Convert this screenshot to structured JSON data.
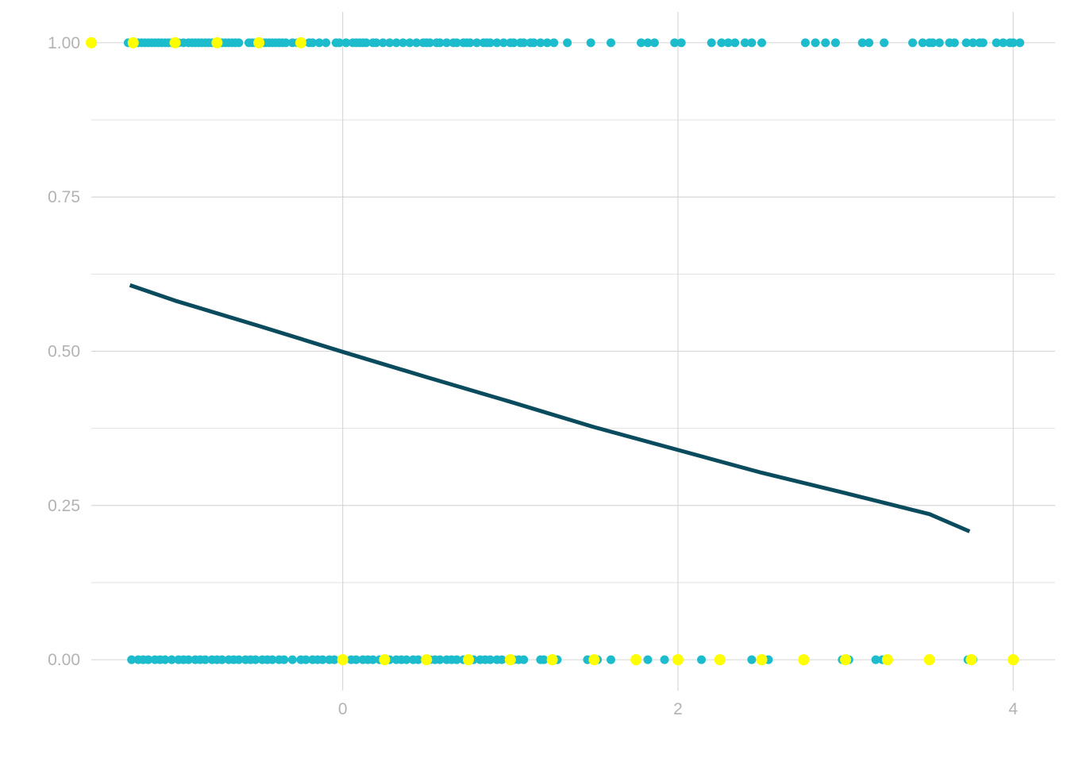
{
  "chart_data": {
    "type": "scatter",
    "title": "",
    "xlabel": "",
    "ylabel": "",
    "xlim": [
      -1.5,
      4.25
    ],
    "ylim": [
      -0.05,
      1.05
    ],
    "x_ticks": [
      0,
      2,
      4
    ],
    "x_tick_labels": [
      "0",
      "2",
      "4"
    ],
    "y_ticks": [
      0,
      0.25,
      0.5,
      0.75,
      1.0
    ],
    "y_tick_labels": [
      "0.00",
      "0.25",
      "0.50",
      "0.75",
      "1.00"
    ],
    "grid": true,
    "legend": "none",
    "colors": {
      "observed": "#1cbccc",
      "highlighted": "#ffff00",
      "fit_line": "#0b4b5e",
      "grid": "#d4d4d4",
      "tick_text": "#b3b3b3"
    },
    "series": [
      {
        "kind": "points",
        "y": 1,
        "color": "observed",
        "x": [
          -1.28,
          -1.26,
          -1.24,
          -1.22,
          -1.2,
          -1.18,
          -1.16,
          -1.14,
          -1.12,
          -1.1,
          -1.08,
          -1.06,
          -1.04,
          -1.02,
          -1.0,
          -0.98,
          -0.95,
          -0.92,
          -0.9,
          -0.88,
          -0.86,
          -0.84,
          -0.82,
          -0.8,
          -0.78,
          -0.76,
          -0.74,
          -0.72,
          -0.7,
          -0.68,
          -0.66,
          -0.64,
          -0.62,
          -0.56,
          -0.54,
          -0.52,
          -0.5,
          -0.48,
          -0.46,
          -0.44,
          -0.42,
          -0.4,
          -0.38,
          -0.36,
          -0.34,
          -0.3,
          -0.27,
          -0.24,
          -0.2,
          -0.18,
          -0.14,
          -0.1,
          -0.04,
          -0.02,
          0.02,
          0.06,
          0.08,
          0.1,
          0.12,
          0.14,
          0.18,
          0.2,
          0.24,
          0.28,
          0.32,
          0.36,
          0.4,
          0.44,
          0.48,
          0.5,
          0.52,
          0.56,
          0.58,
          0.62,
          0.66,
          0.68,
          0.72,
          0.74,
          0.76,
          0.8,
          0.84,
          0.86,
          0.88,
          0.92,
          0.96,
          1.0,
          1.02,
          1.06,
          1.08,
          1.12,
          1.14,
          1.18,
          1.22,
          1.26,
          1.34,
          1.48,
          1.6,
          1.78,
          1.82,
          1.86,
          1.98,
          2.02,
          2.2,
          2.26,
          2.3,
          2.34,
          2.4,
          2.44,
          2.5,
          2.76,
          2.82,
          2.88,
          2.94,
          3.1,
          3.14,
          3.23,
          3.4,
          3.46,
          3.5,
          3.52,
          3.56,
          3.62,
          3.65,
          3.72,
          3.76,
          3.8,
          3.82,
          3.9,
          3.94,
          3.98,
          4.0,
          4.04
        ]
      },
      {
        "kind": "points",
        "y": 1,
        "color": "highlighted",
        "x": [
          -1.5,
          -1.25,
          -1.0,
          -0.75,
          -0.5,
          -0.25
        ]
      },
      {
        "kind": "points",
        "y": 0,
        "color": "observed",
        "x": [
          -1.26,
          -1.22,
          -1.19,
          -1.16,
          -1.12,
          -1.09,
          -1.06,
          -1.02,
          -0.98,
          -0.95,
          -0.92,
          -0.88,
          -0.85,
          -0.82,
          -0.78,
          -0.75,
          -0.72,
          -0.68,
          -0.65,
          -0.62,
          -0.58,
          -0.55,
          -0.52,
          -0.48,
          -0.45,
          -0.42,
          -0.38,
          -0.35,
          -0.3,
          -0.25,
          -0.22,
          -0.18,
          -0.15,
          -0.12,
          -0.08,
          -0.05,
          0.05,
          0.08,
          0.12,
          0.15,
          0.18,
          0.22,
          0.28,
          0.32,
          0.35,
          0.38,
          0.42,
          0.45,
          0.52,
          0.55,
          0.58,
          0.62,
          0.65,
          0.68,
          0.72,
          0.78,
          0.82,
          0.85,
          0.88,
          0.92,
          0.95,
          1.02,
          1.05,
          1.08,
          1.18,
          1.2,
          1.28,
          1.46,
          1.52,
          1.6,
          1.82,
          1.92,
          2.14,
          2.44,
          2.54,
          2.98,
          3.02,
          3.18,
          3.22,
          3.73,
          3.76
        ]
      },
      {
        "kind": "points",
        "y": 0,
        "color": "highlighted",
        "x": [
          0.0,
          0.25,
          0.5,
          0.75,
          1.0,
          1.25,
          1.5,
          1.75,
          2.0,
          2.25,
          2.5,
          2.75,
          3.0,
          3.25,
          3.5,
          3.75,
          4.0
        ]
      },
      {
        "kind": "line",
        "color": "fit_line",
        "name": "",
        "x": [
          -1.27,
          -1.0,
          -0.5,
          0.0,
          0.5,
          1.0,
          1.5,
          2.0,
          2.5,
          3.0,
          3.5,
          3.74
        ],
        "y": [
          0.607,
          0.582,
          0.541,
          0.499,
          0.458,
          0.418,
          0.377,
          0.34,
          0.303,
          0.27,
          0.236,
          0.208
        ]
      }
    ]
  }
}
